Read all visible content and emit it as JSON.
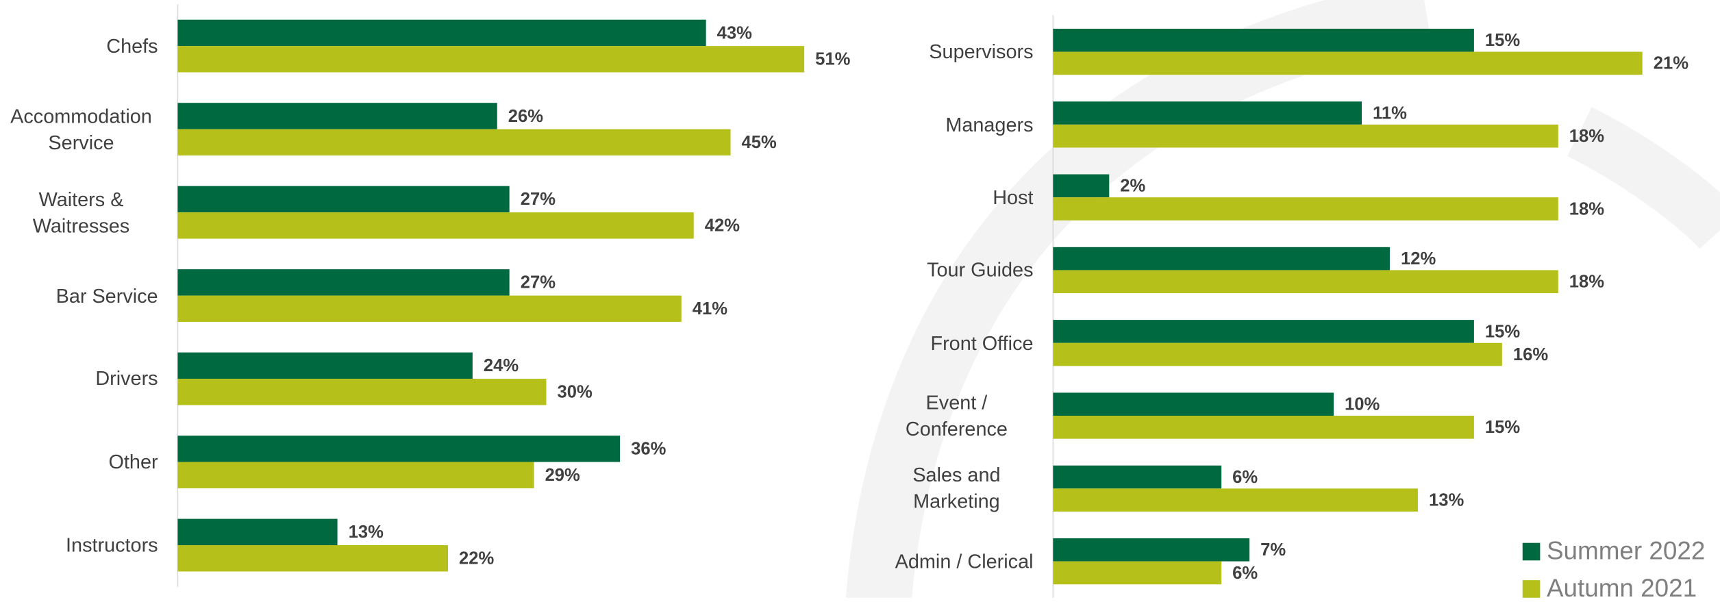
{
  "chart_data": [
    {
      "type": "barh",
      "categories": [
        "Chefs",
        "Accommodation Service",
        "Waiters & Waitresses",
        "Bar Service",
        "Drivers",
        "Other",
        "Instructors"
      ],
      "series": [
        {
          "color": "#006940",
          "values": [
            43,
            26,
            27,
            27,
            24,
            36,
            13
          ],
          "value_labels": [
            "43%",
            "26%",
            "27%",
            "27%",
            "24%",
            "36%",
            "13%"
          ]
        },
        {
          "color": "#b5c01a",
          "values": [
            51,
            45,
            42,
            41,
            30,
            29,
            22
          ],
          "value_labels": [
            "51%",
            "45%",
            "42%",
            "41%",
            "30%",
            "29%",
            "22%"
          ]
        }
      ],
      "xlim": [
        0,
        55
      ]
    },
    {
      "type": "barh",
      "categories": [
        "Supervisors",
        "Managers",
        "Host",
        "Tour Guides",
        "Front Office",
        "Event / Conference",
        "Sales and Marketing",
        "Admin / Clerical"
      ],
      "series": [
        {
          "name": "Summer 2022",
          "color": "#006940",
          "values": [
            15,
            11,
            2,
            12,
            15,
            10,
            6,
            7
          ],
          "value_labels": [
            "15%",
            "11%",
            "2%",
            "12%",
            "15%",
            "10%",
            "6%",
            "7%"
          ]
        },
        {
          "name": "Autumn 2021",
          "color": "#b5c01a",
          "values": [
            21,
            18,
            18,
            18,
            16,
            15,
            13,
            6
          ],
          "value_labels": [
            "21%",
            "18%",
            "18%",
            "18%",
            "16%",
            "15%",
            "13%",
            "6%"
          ]
        }
      ],
      "xlim": [
        0,
        24
      ],
      "legend": "bottom-right"
    }
  ]
}
